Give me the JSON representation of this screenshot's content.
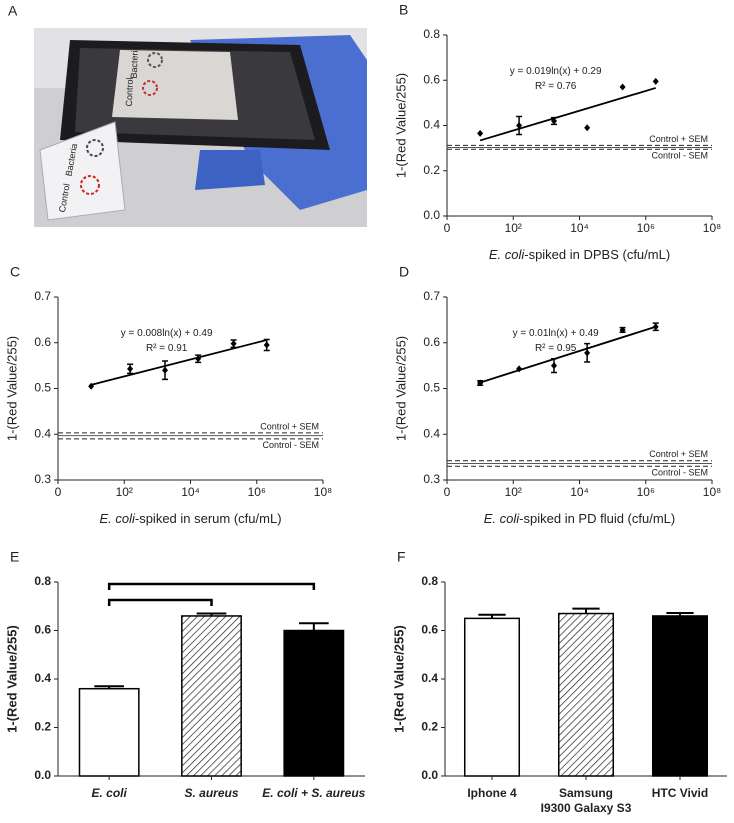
{
  "photo": {
    "label": "A",
    "texts": [
      "Bacteria",
      "Control",
      "Bacteria",
      "Control"
    ]
  },
  "chart_data": [
    {
      "type": "scatter",
      "label": "B",
      "ylabel": "1-(Red Value/255)",
      "xlabel_italic": "E. coli",
      "xlabel": "-spiked in DPBS (cfu/mL)",
      "x": [
        10,
        150,
        1700,
        17000,
        200000,
        2000000
      ],
      "values": [
        0.365,
        0.4,
        0.42,
        0.39,
        0.57,
        0.595
      ],
      "errors": [
        0,
        0.04,
        0.015,
        0,
        0,
        0
      ],
      "xscale": "log",
      "xlim": [
        1,
        100000000
      ],
      "xticks": [
        {
          "value": 1,
          "label": "0"
        },
        {
          "value": 100,
          "label": "10²"
        },
        {
          "value": 10000,
          "label": "10⁴"
        },
        {
          "value": 1000000,
          "label": "10⁶"
        },
        {
          "value": 100000000,
          "label": "10⁸"
        }
      ],
      "ylim": [
        0,
        0.8
      ],
      "yticks": [
        {
          "value": 0,
          "label": "0.0"
        },
        0.2,
        0.4,
        0.6,
        0.8
      ],
      "equation": [
        "y = 0.019ln(x) + 0.29",
        "R² = 0.76"
      ],
      "fit": {
        "x": [
          10,
          2000000
        ],
        "y": [
          0.334,
          0.566
        ]
      },
      "reference_lines": [
        {
          "value": 0.312,
          "label": "Control + SEM"
        },
        {
          "value": 0.295,
          "label": "Control - SEM"
        }
      ],
      "control_mean": 0.303,
      "color": "#000000"
    },
    {
      "type": "scatter",
      "label": "C",
      "ylabel": "1-(Red Value/255)",
      "xlabel_italic": "E. coli",
      "xlabel": "-spiked in serum (cfu/mL)",
      "x": [
        10,
        150,
        1700,
        17000,
        200000,
        2000000
      ],
      "values": [
        0.505,
        0.543,
        0.54,
        0.565,
        0.598,
        0.595
      ],
      "errors": [
        0,
        0.01,
        0.02,
        0.008,
        0.008,
        0.012
      ],
      "xscale": "log",
      "xlim": [
        1,
        100000000
      ],
      "xticks": [
        {
          "value": 1,
          "label": "0"
        },
        {
          "value": 100,
          "label": "10²"
        },
        {
          "value": 10000,
          "label": "10⁴"
        },
        {
          "value": 1000000,
          "label": "10⁶"
        },
        {
          "value": 100000000,
          "label": "10⁸"
        }
      ],
      "ylim": [
        0.3,
        0.7
      ],
      "yticks": [
        0.3,
        0.4,
        0.5,
        0.6,
        0.7
      ],
      "equation": [
        "y = 0.008ln(x) + 0.49",
        "R² = 0.91"
      ],
      "fit": {
        "x": [
          10,
          2000000
        ],
        "y": [
          0.508,
          0.606
        ]
      },
      "reference_lines": [
        {
          "value": 0.403,
          "label": "Control + SEM"
        },
        {
          "value": 0.39,
          "label": "Control - SEM"
        }
      ],
      "control_mean": 0.397,
      "color": "#000000"
    },
    {
      "type": "scatter",
      "label": "D",
      "ylabel": "1-(Red Value/255)",
      "xlabel_italic": "E. coli",
      "xlabel": "-spiked in PD fluid (cfu/mL)",
      "x": [
        10,
        150,
        1700,
        17000,
        200000,
        2000000
      ],
      "values": [
        0.512,
        0.543,
        0.55,
        0.578,
        0.628,
        0.635
      ],
      "errors": [
        0.005,
        0,
        0.015,
        0.02,
        0.005,
        0.008
      ],
      "xscale": "log",
      "xlim": [
        1,
        100000000
      ],
      "xticks": [
        {
          "value": 1,
          "label": "0"
        },
        {
          "value": 100,
          "label": "10²"
        },
        {
          "value": 10000,
          "label": "10⁴"
        },
        {
          "value": 1000000,
          "label": "10⁶"
        },
        {
          "value": 100000000,
          "label": "10⁸"
        }
      ],
      "ylim": [
        0.3,
        0.7
      ],
      "yticks": [
        0.3,
        0.4,
        0.5,
        0.6,
        0.7
      ],
      "equation": [
        "y = 0.01ln(x) + 0.49",
        "R² = 0.95"
      ],
      "fit": {
        "x": [
          10,
          2000000
        ],
        "y": [
          0.513,
          0.635
        ]
      },
      "reference_lines": [
        {
          "value": 0.342,
          "label": "Control + SEM"
        },
        {
          "value": 0.33,
          "label": "Control - SEM"
        }
      ],
      "control_mean": 0.336,
      "color": "#000000"
    },
    {
      "type": "bar",
      "label": "E",
      "ylabel": "1-(Red Value/255)",
      "category_style": "bold-italic",
      "categories": [
        "E. coli",
        "S. aureus",
        "E. coli + S. aureus"
      ],
      "values": [
        0.36,
        0.66,
        0.6
      ],
      "errors": [
        0.01,
        0.01,
        0.03
      ],
      "bar_styles": [
        "#ffffff",
        "hatch",
        "#000000"
      ],
      "ylim": [
        0,
        0.8
      ],
      "yticks": [
        {
          "value": 0,
          "label": "0.0"
        },
        0.2,
        0.4,
        0.6,
        0.8
      ]
    },
    {
      "type": "bar",
      "label": "F",
      "ylabel": "1-(Red Value/255)",
      "category_style": "bold",
      "categories": [
        "Iphone 4",
        "Samsung\nI9300 Galaxy S3",
        "HTC Vivid"
      ],
      "values": [
        0.65,
        0.67,
        0.66
      ],
      "errors": [
        0.015,
        0.02,
        0.012
      ],
      "bar_styles": [
        "#ffffff",
        "hatch",
        "#000000"
      ],
      "ylim": [
        0,
        0.8
      ],
      "yticks": [
        {
          "value": 0,
          "label": "0.0"
        },
        0.2,
        0.4,
        0.6,
        0.8
      ]
    }
  ]
}
